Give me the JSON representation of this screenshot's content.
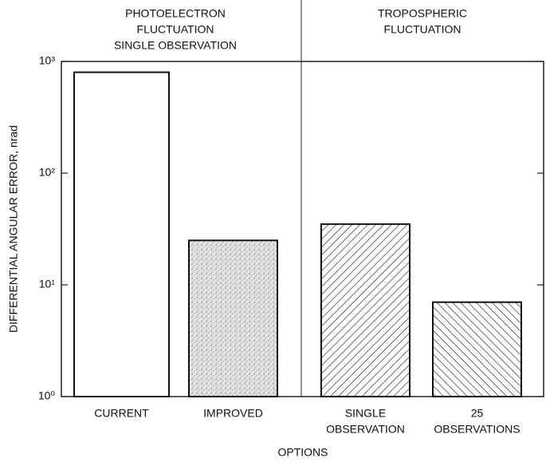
{
  "chart_data": {
    "type": "bar",
    "y_label": "DIFFERENTIAL ANGULAR ERROR, nrad",
    "x_label": "OPTIONS",
    "groups": [
      {
        "lines": [
          "PHOTOELECTRON",
          "FLUCTUATION",
          "SINGLE OBSERVATION"
        ]
      },
      {
        "lines": [
          "TROPOSPHERIC",
          "FLUCTUATION"
        ]
      }
    ],
    "categories": [
      [
        "CURRENT"
      ],
      [
        "IMPROVED"
      ],
      [
        "SINGLE",
        "OBSERVATION"
      ],
      [
        "25",
        "OBSERVATIONS"
      ]
    ],
    "values": [
      800,
      25,
      35,
      7
    ],
    "patterns": [
      "none",
      "stipple",
      "hatch-right",
      "hatch-left"
    ],
    "log_scale": true,
    "ylim": [
      1,
      1000
    ],
    "yticks": [
      {
        "value": 1,
        "label": "10⁰"
      },
      {
        "value": 10,
        "label": "10¹"
      },
      {
        "value": 100,
        "label": "10²"
      },
      {
        "value": 1000,
        "label": "10³"
      }
    ]
  }
}
